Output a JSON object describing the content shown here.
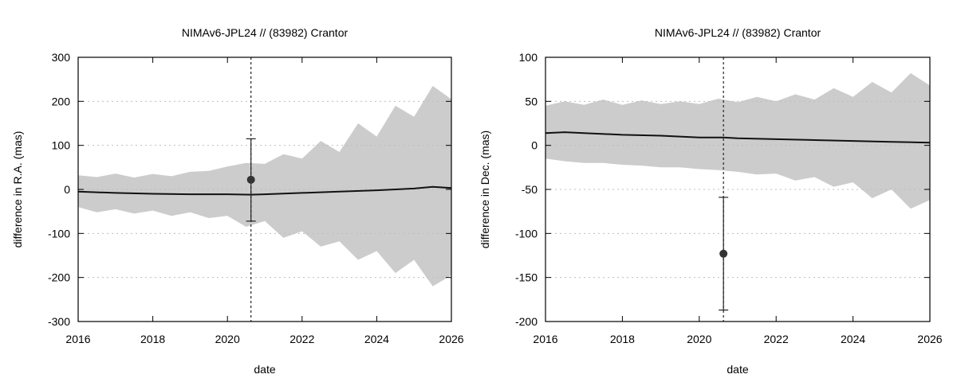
{
  "chart_data": [
    {
      "type": "line",
      "title": "NIMAv6-JPL24 // (83982) Crantor",
      "xlabel": "date",
      "ylabel": "difference in R.A. (mas)",
      "xlim": [
        2016,
        2026
      ],
      "ylim": [
        -300,
        300
      ],
      "x_ticks": [
        "2016",
        "2018",
        "2020",
        "2022",
        "2024",
        "2026"
      ],
      "y_ticks": [
        "-300",
        "-200",
        "-100",
        "0",
        "100",
        "200",
        "300"
      ],
      "grid": "horizontal dotted",
      "marker_date": 2020.63,
      "uncertainty_band": {
        "x": [
          2016.0,
          2016.5,
          2017.0,
          2017.5,
          2018.0,
          2018.5,
          2019.0,
          2019.5,
          2020.0,
          2020.5,
          2021.0,
          2021.5,
          2022.0,
          2022.5,
          2023.0,
          2023.5,
          2024.0,
          2024.5,
          2025.0,
          2025.5,
          2026.0
        ],
        "upper": [
          32,
          28,
          36,
          27,
          35,
          30,
          40,
          42,
          52,
          60,
          58,
          80,
          70,
          110,
          85,
          150,
          120,
          190,
          165,
          235,
          205
        ],
        "lower": [
          -40,
          -52,
          -45,
          -55,
          -48,
          -60,
          -52,
          -65,
          -60,
          -85,
          -72,
          -110,
          -95,
          -130,
          -118,
          -160,
          -140,
          -190,
          -160,
          -220,
          -195
        ]
      },
      "series": [
        {
          "x": [
            2016.0,
            2017.0,
            2018.0,
            2019.0,
            2020.0,
            2020.63,
            2021.0,
            2022.0,
            2023.0,
            2024.0,
            2025.0,
            2025.5,
            2026.0
          ],
          "values": [
            -5,
            -8,
            -10,
            -11,
            -11,
            -12,
            -11,
            -8,
            -5,
            -2,
            2,
            6,
            3
          ]
        }
      ],
      "observation": {
        "x": 2020.63,
        "value": 22,
        "error_low": -72,
        "error_high": 115
      }
    },
    {
      "type": "line",
      "title": "NIMAv6-JPL24 // (83982) Crantor",
      "xlabel": "date",
      "ylabel": "difference in Dec. (mas)",
      "xlim": [
        2016,
        2026
      ],
      "ylim": [
        -200,
        100
      ],
      "x_ticks": [
        "2016",
        "2018",
        "2020",
        "2022",
        "2024",
        "2026"
      ],
      "y_ticks": [
        "-200",
        "-150",
        "-100",
        "-50",
        "0",
        "50",
        "100"
      ],
      "grid": "horizontal dotted",
      "marker_date": 2020.63,
      "uncertainty_band": {
        "x": [
          2016.0,
          2016.5,
          2017.0,
          2017.5,
          2018.0,
          2018.5,
          2019.0,
          2019.5,
          2020.0,
          2020.5,
          2021.0,
          2021.5,
          2022.0,
          2022.5,
          2023.0,
          2023.5,
          2024.0,
          2024.5,
          2025.0,
          2025.5,
          2026.0
        ],
        "upper": [
          45,
          50,
          46,
          52,
          46,
          51,
          47,
          50,
          47,
          53,
          49,
          55,
          50,
          58,
          52,
          65,
          55,
          72,
          60,
          82,
          68
        ],
        "lower": [
          -15,
          -18,
          -20,
          -20,
          -22,
          -23,
          -25,
          -25,
          -27,
          -28,
          -30,
          -33,
          -32,
          -40,
          -36,
          -47,
          -42,
          -60,
          -50,
          -72,
          -62
        ]
      },
      "series": [
        {
          "x": [
            2016.0,
            2016.5,
            2017.0,
            2018.0,
            2019.0,
            2020.0,
            2020.63,
            2021.0,
            2022.0,
            2023.0,
            2024.0,
            2025.0,
            2026.0
          ],
          "values": [
            14,
            15,
            14,
            12,
            11,
            9,
            9,
            8,
            7,
            6,
            5,
            4,
            3
          ]
        }
      ],
      "observation": {
        "x": 2020.63,
        "value": -123,
        "error_low": -187,
        "error_high": -59
      }
    }
  ]
}
